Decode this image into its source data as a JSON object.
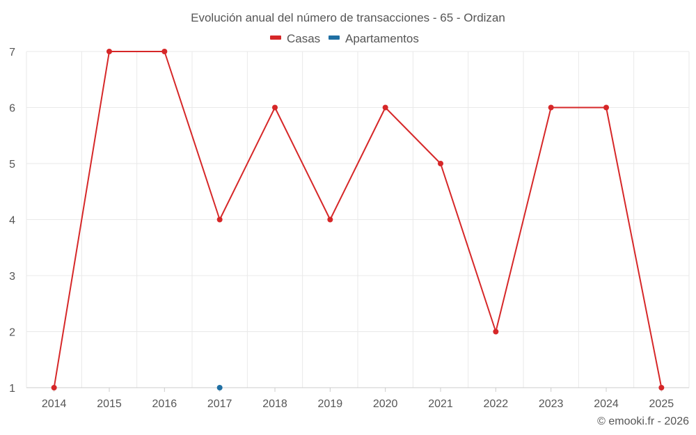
{
  "chart_data": {
    "type": "line",
    "title": "Evolución anual del número de transacciones - 65 - Ordizan",
    "categories": [
      "2014",
      "2015",
      "2016",
      "2017",
      "2018",
      "2019",
      "2020",
      "2021",
      "2022",
      "2023",
      "2024",
      "2025"
    ],
    "ylim": [
      1,
      7
    ],
    "yticks": [
      "1",
      "2",
      "3",
      "4",
      "5",
      "6",
      "7"
    ],
    "grid": true,
    "legend_position": "top-center",
    "series": [
      {
        "name": "Casas",
        "color": "#d62728",
        "values": [
          1,
          7,
          7,
          4,
          6,
          4,
          6,
          5,
          2,
          6,
          6,
          1
        ]
      },
      {
        "name": "Apartamentos",
        "color": "#1f6fa3",
        "values": [
          null,
          null,
          null,
          1,
          null,
          null,
          null,
          null,
          null,
          null,
          null,
          null
        ]
      }
    ]
  },
  "credit": "© emooki.fr - 2026"
}
